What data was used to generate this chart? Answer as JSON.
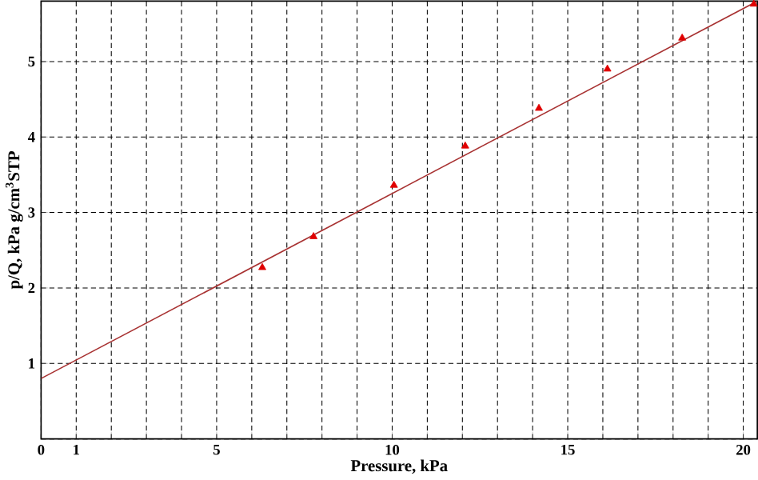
{
  "chart_data": {
    "type": "scatter",
    "xlabel": "Pressure, kPa",
    "ylabel": "p/Q, kPa g/cm$^{3}$STP",
    "xlim": [
      0,
      20.4
    ],
    "ylim": [
      0,
      5.8
    ],
    "xticks": [
      0,
      1,
      {
        "value": 2,
        "label": null
      },
      {
        "value": 3,
        "label": null
      },
      {
        "value": 4,
        "label": null
      },
      5,
      {
        "value": 6,
        "label": null
      },
      {
        "value": 7,
        "label": null
      },
      {
        "value": 8,
        "label": null
      },
      {
        "value": 9,
        "label": null
      },
      10,
      {
        "value": 11,
        "label": null
      },
      {
        "value": 12,
        "label": null
      },
      {
        "value": 13,
        "label": null
      },
      {
        "value": 14,
        "label": null
      },
      15,
      {
        "value": 16,
        "label": null
      },
      {
        "value": 17,
        "label": null
      },
      {
        "value": 18,
        "label": null
      },
      {
        "value": 19,
        "label": null
      },
      20
    ],
    "yticks": [
      {
        "value": 0,
        "label": null
      },
      1,
      2,
      3,
      4,
      5
    ],
    "grid": true,
    "marker": "triangle",
    "series": [
      {
        "color": "#e00000",
        "x": [
          6.3,
          7.76,
          10.05,
          12.08,
          14.18,
          16.13,
          18.26,
          20.3
        ],
        "values": [
          2.27,
          2.68,
          3.36,
          3.88,
          4.38,
          4.9,
          5.31,
          5.76
        ]
      },
      {
        "type": "line",
        "color": "#a83232",
        "marker": "none",
        "x": [
          0,
          20.4
        ],
        "values": [
          0.8,
          5.8
        ]
      }
    ]
  }
}
